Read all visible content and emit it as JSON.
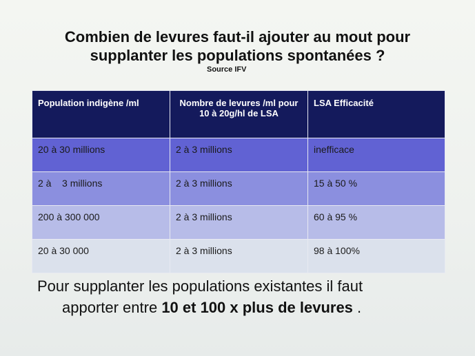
{
  "title_line1": "Combien de levures faut-il ajouter au mout pour",
  "title_line2": "supplanter les populations spontanées ?",
  "source": "Source IFV",
  "table": {
    "headers": [
      "Population indigène /ml",
      "Nombre  de levures /ml pour 10 à 20g/hl de LSA",
      "LSA Efficacité"
    ],
    "rows": [
      [
        "20 à 30 millions",
        "2 à 3 millions",
        "inefficace"
      ],
      [
        "2 à    3 millions",
        "2 à 3 millions",
        "15 à 50 %"
      ],
      [
        "200 à 300 000",
        "2 à 3 millions",
        "60 à 95 %"
      ],
      [
        "20 à 30 000",
        "2 à 3 millions",
        "98 à 100%"
      ]
    ],
    "row_colors": [
      "#6162d3",
      "#8b8fdf",
      "#b7bce8",
      "#dbe1ec"
    ],
    "header_color": "#141a5c"
  },
  "footer": {
    "line1": "Pour supplanter les populations existantes il faut",
    "line2_prefix": "apporter entre ",
    "line2_bold": "10 et 100 x plus de levures",
    "line2_suffix": " ."
  }
}
